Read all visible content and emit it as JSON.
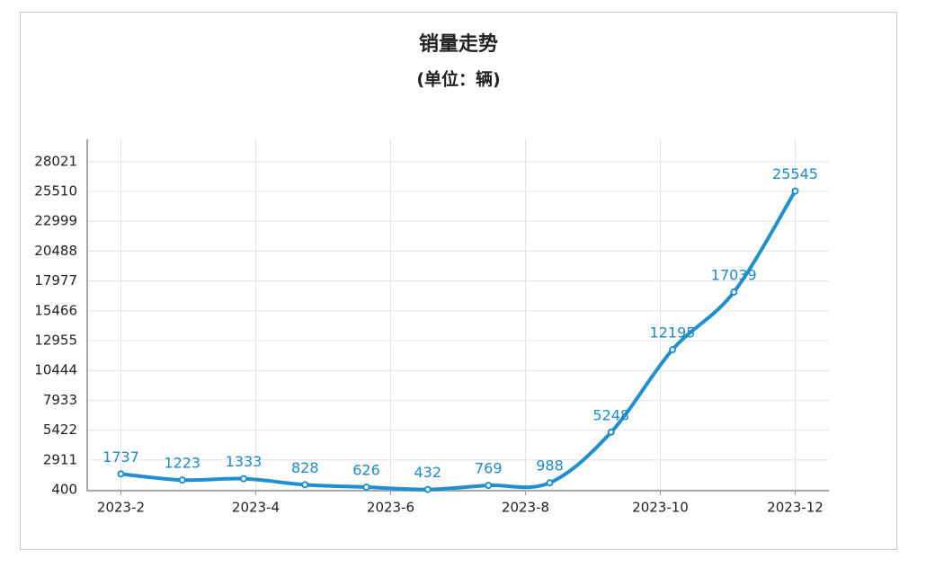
{
  "chart_data": {
    "type": "line",
    "title": "销量走势",
    "subtitle": "(单位：辆)",
    "x": [
      2,
      2.91,
      3.82,
      4.73,
      5.64,
      6.55,
      7.45,
      8.36,
      9.27,
      10.18,
      11.09,
      12
    ],
    "values": [
      1737,
      1223,
      1333,
      828,
      626,
      432,
      769,
      988,
      5248,
      12195,
      17039,
      25545
    ],
    "color": "#1f8fd0",
    "xlim": [
      1.5,
      12.5
    ],
    "xticks": [
      {
        "value": 2,
        "label": "2023-2"
      },
      {
        "value": 4,
        "label": "2023-4"
      },
      {
        "value": 6,
        "label": "2023-6"
      },
      {
        "value": 8,
        "label": "2023-8"
      },
      {
        "value": 10,
        "label": "2023-10"
      },
      {
        "value": 12,
        "label": "2023-12"
      }
    ],
    "ylim": [
      400,
      29900
    ],
    "yticks": [
      400,
      2911,
      5422,
      7933,
      10444,
      12955,
      15466,
      17977,
      20488,
      22999,
      25510,
      28021
    ],
    "grid": true
  }
}
